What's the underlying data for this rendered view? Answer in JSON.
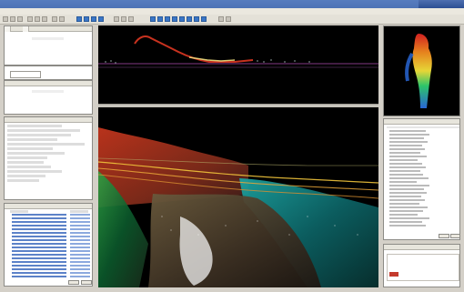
{
  "window": {
    "title": "",
    "menu": []
  },
  "left_panel_1": {
    "tab1": "",
    "tab2": "",
    "content": ""
  },
  "left_panel_2": {
    "title": "",
    "content": ""
  },
  "left_panel_3": {
    "title": "",
    "tree": []
  },
  "left_panel_4": {
    "title": "",
    "col1": "",
    "col2": ""
  },
  "right_panel_list": {
    "col1": "",
    "col2": "",
    "col3": ""
  },
  "right_panel_bottom": {
    "title": ""
  },
  "colors": {
    "profile_line": "#c8321f",
    "profile_band": "#6a2f6b",
    "viewport_bg": "#000000"
  },
  "icons": {
    "toolbar": [
      "new-icon",
      "open-icon",
      "save-icon",
      "cut-icon",
      "copy-icon",
      "paste-icon",
      "undo-icon",
      "redo-icon",
      "select-icon",
      "zoom-in-icon",
      "zoom-out-icon",
      "pan-icon",
      "rotate-icon",
      "measure-icon",
      "layers-icon",
      "settings-icon",
      "help-icon"
    ]
  }
}
